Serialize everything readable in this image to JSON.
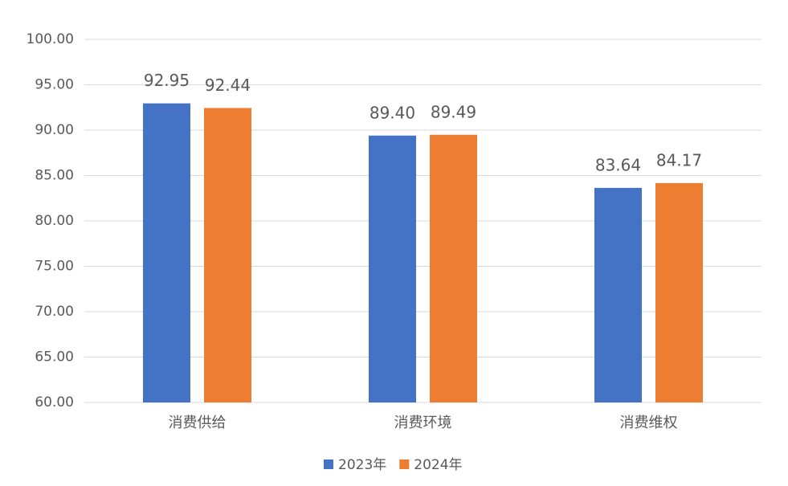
{
  "chart_data": {
    "type": "bar",
    "categories": [
      "消费供给",
      "消费环境",
      "消费维权"
    ],
    "series": [
      {
        "name": "2023年",
        "color": "#4472c4",
        "values": [
          92.95,
          89.4,
          83.64
        ],
        "value_labels": [
          "92.95",
          "89.40",
          "83.64"
        ]
      },
      {
        "name": "2024年",
        "color": "#ed7d31",
        "values": [
          92.44,
          89.49,
          84.17
        ],
        "value_labels": [
          "92.44",
          "89.49",
          "84.17"
        ]
      }
    ],
    "ylim": [
      60,
      100
    ],
    "yticks": [
      {
        "value": 60,
        "label": "60.00"
      },
      {
        "value": 65,
        "label": "65.00"
      },
      {
        "value": 70,
        "label": "70.00"
      },
      {
        "value": 75,
        "label": "75.00"
      },
      {
        "value": 80,
        "label": "80.00"
      },
      {
        "value": 85,
        "label": "85.00"
      },
      {
        "value": 90,
        "label": "90.00"
      },
      {
        "value": 95,
        "label": "95.00"
      },
      {
        "value": 100,
        "label": "100.00"
      }
    ],
    "grid": true,
    "legend": "bottom"
  }
}
